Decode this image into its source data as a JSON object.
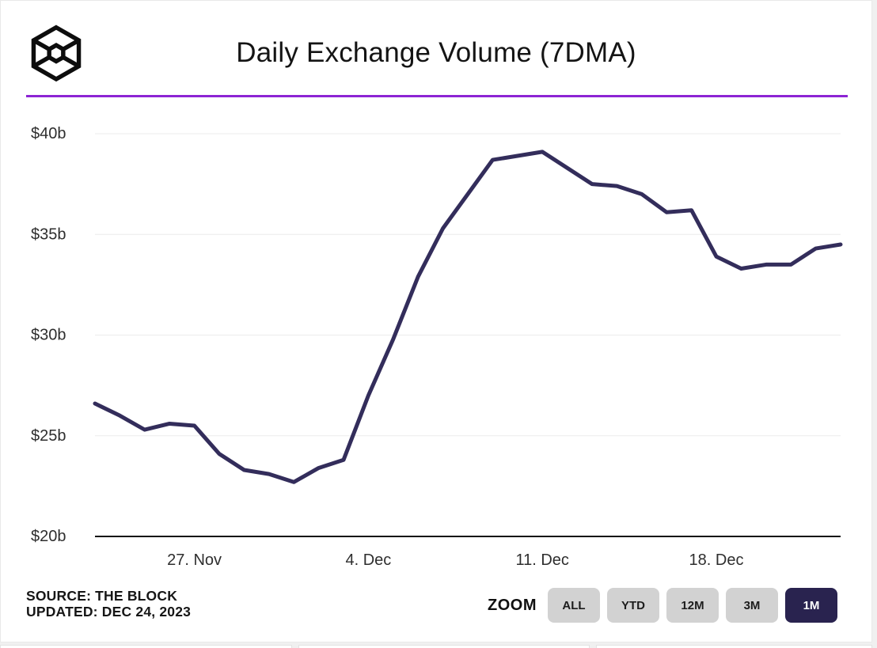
{
  "header": {
    "title": "Daily Exchange Volume (7DMA)",
    "logo_icon": "the-block-cube-logo",
    "accent_color": "#8d24d4"
  },
  "chart_data": {
    "type": "line",
    "title": "Daily Exchange Volume (7DMA)",
    "unit": "USD billions per day",
    "line_color": "#332d5b",
    "grid": true,
    "legend_position": "none",
    "ylim": [
      20,
      40
    ],
    "y_ticks": [
      {
        "label": "$40b",
        "value": 40
      },
      {
        "label": "$35b",
        "value": 35
      },
      {
        "label": "$30b",
        "value": 30
      },
      {
        "label": "$25b",
        "value": 25
      },
      {
        "label": "$20b",
        "value": 20
      }
    ],
    "x_tick_labels": [
      {
        "label": "27. Nov",
        "index": 4
      },
      {
        "label": "4. Dec",
        "index": 11
      },
      {
        "label": "11. Dec",
        "index": 18
      },
      {
        "label": "18. Dec",
        "index": 25
      }
    ],
    "x": [
      "Nov 23",
      "Nov 24",
      "Nov 25",
      "Nov 26",
      "Nov 27",
      "Nov 28",
      "Nov 29",
      "Nov 30",
      "Dec 1",
      "Dec 2",
      "Dec 3",
      "Dec 4",
      "Dec 5",
      "Dec 6",
      "Dec 7",
      "Dec 8",
      "Dec 9",
      "Dec 10",
      "Dec 11",
      "Dec 12",
      "Dec 13",
      "Dec 14",
      "Dec 15",
      "Dec 16",
      "Dec 17",
      "Dec 18",
      "Dec 19",
      "Dec 20",
      "Dec 21",
      "Dec 22",
      "Dec 23"
    ],
    "series": [
      {
        "name": "Daily Exchange Volume (7DMA)",
        "values": [
          26.6,
          26.0,
          25.3,
          25.6,
          25.5,
          24.1,
          23.3,
          23.1,
          22.7,
          23.4,
          23.8,
          27.0,
          29.8,
          32.9,
          35.3,
          37.0,
          38.7,
          38.9,
          39.1,
          38.3,
          37.5,
          37.4,
          37.0,
          36.1,
          36.2,
          33.9,
          33.3,
          33.5,
          33.5,
          34.3,
          34.5
        ]
      }
    ]
  },
  "footer": {
    "source_line1": "SOURCE: THE BLOCK",
    "source_line2": "UPDATED: DEC 24, 2023",
    "zoom_label": "ZOOM",
    "zoom_buttons": [
      {
        "label": "ALL",
        "active": false
      },
      {
        "label": "YTD",
        "active": false
      },
      {
        "label": "12M",
        "active": false
      },
      {
        "label": "3M",
        "active": false
      },
      {
        "label": "1M",
        "active": true
      }
    ],
    "active_button_color": "#29234f",
    "inactive_button_color": "#d2d2d2"
  }
}
